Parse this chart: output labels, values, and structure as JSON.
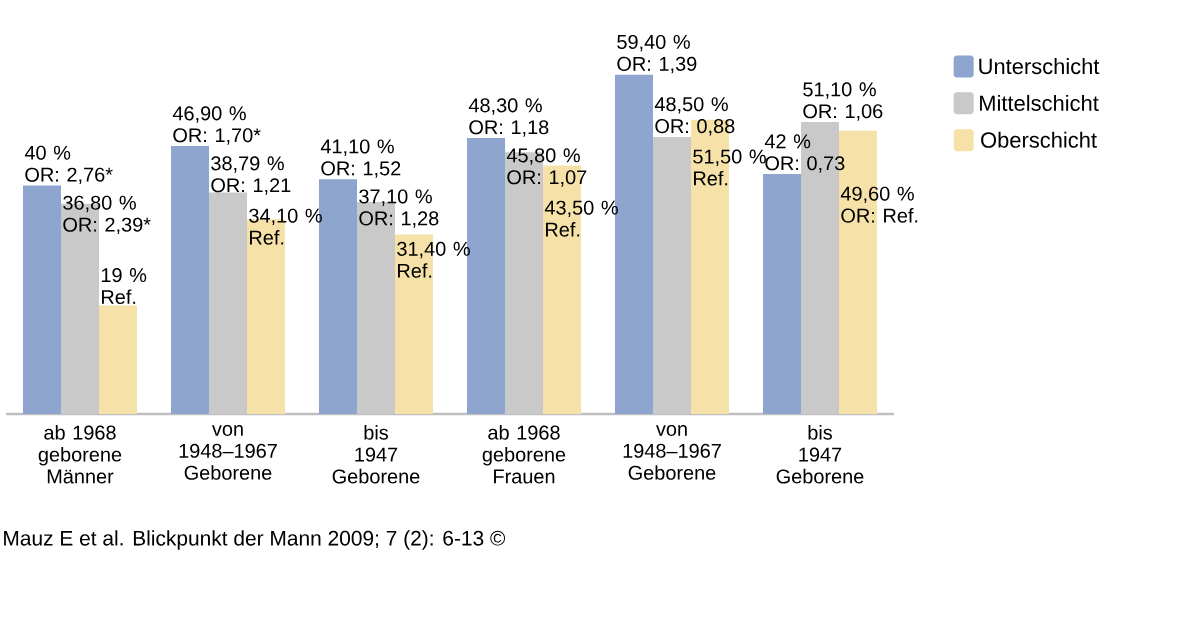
{
  "chart_data": {
    "type": "bar",
    "categories": [
      "ab 1968\ngeborene\nMänner",
      "von\n1948–1967\nGeborene",
      "bis\n1947\nGeborene",
      "ab 1968\ngeborene\nFrauen",
      "von\n1948–1967\nGeborene",
      "bis\n1947\nGeborene"
    ],
    "series": [
      {
        "name": "Unterschicht",
        "color": "#8ea6cf",
        "values": [
          40,
          46.9,
          41.1,
          48.3,
          59.4,
          42
        ],
        "value_labels": [
          "40 %\nOR: 2,76*",
          "46,90 %\nOR: 1,70*",
          "41,10 %\nOR: 1,52",
          "48,30 %\nOR: 1,18",
          "59,40 %\nOR: 1,39",
          "42 %\nOR: 0,73"
        ]
      },
      {
        "name": "Mittelschicht",
        "color": "#c9c9c9",
        "values": [
          36.8,
          38.79,
          37.1,
          45.8,
          48.5,
          51.1
        ],
        "value_labels": [
          "36,80 %\nOR: 2,39*",
          "38,79 %\nOR: 1,21",
          "37,10 %\nOR: 1,28",
          "45,80 %\nOR: 1,07",
          "48,50 %\nOR: 0,88",
          "51,10 %\nOR: 1,06"
        ]
      },
      {
        "name": "Oberschicht",
        "color": "#f6e2a8",
        "values": [
          19,
          34.1,
          31.4,
          43.5,
          51.5,
          49.6
        ],
        "value_labels": [
          "19 %\nRef.",
          "34,10 %\nRef.",
          "31,40 %\nRef.",
          "43,50 %\nRef.",
          "51,50 %\nRef.",
          "49,60 %\nOR: Ref."
        ]
      }
    ],
    "legend": "top right",
    "annotations": [
      "Mauz E et al. Blickpunkt der Mann 2009; 7 (2): 6-13 ©"
    ]
  }
}
